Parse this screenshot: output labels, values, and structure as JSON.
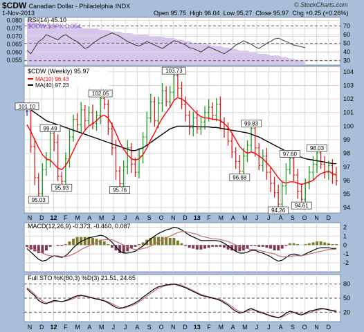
{
  "header": {
    "symbol": "$CDW",
    "name": "Canadian Dollar - Philadelphia",
    "exchange": "INDX",
    "date": "1-Nov-2013",
    "open_label": "Open",
    "open": "95.75",
    "high_label": "High",
    "high": "96.04",
    "low_label": "Low",
    "low": "95.27",
    "close_label": "Close",
    "close": "95.97",
    "chg_label": "Chg",
    "chg": "+0.25 (+0.26%)",
    "watermark": "© StockCharts.com"
  },
  "colors": {
    "background": "#a9bfd9",
    "panel": "#ffffff",
    "price_up": "#1f9a1f",
    "price_down": "#d61f1f",
    "price_flat": "#1f3fd6",
    "ma10": "#ff0000",
    "ma40": "#000000",
    "ratio_fill": "#d6c6ee",
    "macd_hist": "#7a7a2a",
    "macd_signal": "#c07070"
  },
  "chart_data": [
    {
      "type": "line",
      "panel": "rsi",
      "title": "RSI(14) 45.10",
      "overlay_label": "$CDW:$SPX 0.054",
      "ylim_left": [
        0.052,
        0.082
      ],
      "ticks_left": [
        "0.080",
        "0.075",
        "0.070",
        "0.065",
        "0.060",
        "0.055"
      ],
      "ticks_left_values": [
        0.08,
        0.075,
        0.07,
        0.065,
        0.06,
        0.055
      ],
      "ylim_right": [
        25,
        80
      ],
      "ticks_right": [
        "70",
        "60",
        "50",
        "40",
        "30"
      ],
      "ticks_right_values": [
        70,
        60,
        50,
        40,
        30
      ],
      "reference_lines": [
        70,
        50,
        30
      ],
      "ratio": [
        0.081,
        0.08,
        0.079,
        0.078,
        0.078,
        0.077,
        0.077,
        0.077,
        0.077,
        0.076,
        0.076,
        0.076,
        0.077,
        0.077,
        0.076,
        0.075,
        0.075,
        0.075,
        0.075,
        0.074,
        0.074,
        0.074,
        0.073,
        0.073,
        0.073,
        0.072,
        0.072,
        0.072,
        0.071,
        0.071,
        0.071,
        0.071,
        0.07,
        0.07,
        0.07,
        0.07,
        0.069,
        0.069,
        0.069,
        0.068,
        0.068,
        0.067,
        0.067,
        0.066,
        0.066,
        0.066,
        0.065,
        0.065,
        0.064,
        0.064,
        0.064,
        0.063,
        0.063,
        0.062,
        0.062,
        0.061,
        0.061,
        0.061,
        0.06,
        0.06,
        0.059,
        0.059,
        0.059,
        0.058,
        0.058,
        0.058,
        0.057,
        0.057,
        0.056,
        0.056,
        0.055,
        0.055,
        0.054
      ],
      "rsi": [
        42,
        38,
        45,
        52,
        55,
        60,
        58,
        56,
        54,
        58,
        60,
        57,
        54,
        52,
        48,
        44,
        46,
        50,
        53,
        56,
        58,
        60,
        62,
        60,
        58,
        55,
        52,
        50,
        48,
        47,
        49,
        52,
        50,
        48,
        46,
        44,
        47,
        50,
        53,
        52,
        50,
        48,
        45,
        44,
        42,
        40,
        43,
        46,
        44,
        42,
        40,
        38,
        41,
        44,
        48,
        50,
        53,
        51,
        49,
        46,
        44,
        47,
        50,
        52,
        55,
        56,
        54,
        52,
        50,
        48,
        47,
        46,
        45
      ]
    },
    {
      "type": "ohlc",
      "panel": "price",
      "title": "$CDW (Weekly) 95.97",
      "series_labels": [
        "MA(10) 96.43",
        "MA(40) 97.23"
      ],
      "ylim": [
        93.6,
        104.4
      ],
      "ticks": [
        "104",
        "103",
        "102",
        "101",
        "100",
        "99",
        "98",
        "97",
        "96",
        "95",
        "94"
      ],
      "tick_values": [
        104,
        103,
        102,
        101,
        100,
        99,
        98,
        97,
        96,
        95,
        94
      ],
      "x_labels": [
        "N",
        "D",
        "12",
        "F",
        "M",
        "A",
        "M",
        "J",
        "J",
        "A",
        "S",
        "O",
        "N",
        "D",
        "13",
        "F",
        "M",
        "A",
        "M",
        "J",
        "J",
        "A",
        "S",
        "O",
        "N",
        "D"
      ],
      "bold_x_labels": [
        "12",
        "13"
      ],
      "closes": [
        101.1,
        98.5,
        96.2,
        95.03,
        96.8,
        97.5,
        99.49,
        98.8,
        96.3,
        95.93,
        97.6,
        99.2,
        100.5,
        100.1,
        101.2,
        100.4,
        101.0,
        100.2,
        100.8,
        102.05,
        101.6,
        99.8,
        98.4,
        96.7,
        95.76,
        97.0,
        98.4,
        97.2,
        96.6,
        97.8,
        99.2,
        100.6,
        101.8,
        100.4,
        101.7,
        102.6,
        101.8,
        102.5,
        103.73,
        102.8,
        101.6,
        100.8,
        99.9,
        100.6,
        99.8,
        100.3,
        101.0,
        101.4,
        100.8,
        101.6,
        100.3,
        99.8,
        98.9,
        98.1,
        97.4,
        96.68,
        97.8,
        98.6,
        99.83,
        98.4,
        97.1,
        97.8,
        96.6,
        95.8,
        95.1,
        94.26,
        95.6,
        96.8,
        97.6,
        96.4,
        95.2,
        94.61,
        95.8,
        96.6,
        97.2,
        98.03,
        97.2,
        96.6,
        97.1,
        96.4,
        95.97
      ],
      "ma10": [
        100.1,
        99.6,
        99.0,
        98.4,
        97.9,
        97.6,
        97.5,
        97.2,
        96.9,
        96.8,
        97.1,
        97.6,
        98.2,
        98.8,
        99.3,
        99.7,
        100.0,
        100.2,
        100.4,
        100.7,
        100.8,
        100.6,
        100.1,
        99.5,
        98.8,
        98.3,
        97.9,
        97.6,
        97.5,
        97.6,
        97.9,
        98.4,
        99.0,
        99.5,
        100.1,
        100.6,
        101.0,
        101.4,
        101.9,
        102.1,
        102.0,
        101.8,
        101.5,
        101.2,
        100.9,
        100.7,
        100.6,
        100.6,
        100.5,
        100.5,
        100.4,
        100.2,
        99.9,
        99.5,
        99.0,
        98.5,
        98.2,
        98.0,
        98.1,
        98.0,
        97.8,
        97.6,
        97.3,
        97.0,
        96.6,
        96.2,
        95.9,
        95.8,
        95.9,
        95.9,
        95.8,
        95.7,
        95.8,
        95.9,
        96.0,
        96.3,
        96.5,
        96.6,
        96.7,
        96.5,
        96.43
      ],
      "ma40": [
        101.4,
        101.2,
        101.0,
        100.8,
        100.6,
        100.4,
        100.3,
        100.2,
        100.1,
        100.0,
        99.9,
        99.8,
        99.7,
        99.6,
        99.5,
        99.4,
        99.3,
        99.2,
        99.1,
        99.0,
        98.9,
        98.8,
        98.7,
        98.6,
        98.5,
        98.4,
        98.3,
        98.2,
        98.2,
        98.3,
        98.4,
        98.6,
        98.8,
        99.0,
        99.2,
        99.4,
        99.6,
        99.8,
        99.9,
        100.0,
        100.0,
        100.0,
        100.0,
        100.0,
        99.95,
        99.95,
        99.95,
        99.95,
        99.9,
        99.9,
        99.85,
        99.8,
        99.75,
        99.7,
        99.65,
        99.6,
        99.55,
        99.5,
        99.4,
        99.3,
        99.2,
        99.05,
        98.9,
        98.75,
        98.6,
        98.45,
        98.3,
        98.15,
        98.0,
        97.9,
        97.8,
        97.7,
        97.6,
        97.55,
        97.5,
        97.45,
        97.4,
        97.35,
        97.3,
        97.25,
        97.23
      ],
      "annotations": [
        {
          "label": "101.10",
          "index": 0,
          "value": 101.1
        },
        {
          "label": "99.49",
          "index": 6,
          "value": 99.49
        },
        {
          "label": "95.03",
          "index": 3,
          "value": 95.03
        },
        {
          "label": "95.93",
          "index": 9,
          "value": 95.93
        },
        {
          "label": "102.05",
          "index": 19,
          "value": 102.05
        },
        {
          "label": "95.76",
          "index": 24,
          "value": 95.76
        },
        {
          "label": "103.73",
          "index": 38,
          "value": 103.73
        },
        {
          "label": "96.68",
          "index": 55,
          "value": 96.68
        },
        {
          "label": "99.83",
          "index": 58,
          "value": 99.83
        },
        {
          "label": "97.60",
          "index": 68,
          "value": 97.6
        },
        {
          "label": "94.26",
          "index": 65,
          "value": 94.26
        },
        {
          "label": "94.61",
          "index": 71,
          "value": 94.61
        },
        {
          "label": "98.03",
          "index": 75,
          "value": 98.03
        }
      ]
    },
    {
      "type": "line",
      "panel": "macd",
      "title": "MACD(12,26,9) -0.373, -0.460, 0.087",
      "ylim": [
        -3,
        2.5
      ],
      "ticks": [
        "2",
        "1",
        "0",
        "-1",
        "-2"
      ],
      "tick_values": [
        2,
        1,
        0,
        -1,
        -2
      ],
      "macd": [
        -0.4,
        -0.8,
        -1.2,
        -1.6,
        -1.8,
        -1.7,
        -1.4,
        -1.2,
        -1.3,
        -1.4,
        -1.2,
        -0.8,
        -0.3,
        0.1,
        0.4,
        0.6,
        0.8,
        0.9,
        1.0,
        1.1,
        1.0,
        0.7,
        0.3,
        -0.2,
        -0.7,
        -0.9,
        -0.9,
        -0.8,
        -0.7,
        -0.4,
        -0.1,
        0.3,
        0.7,
        1.0,
        1.3,
        1.5,
        1.7,
        1.8,
        2.0,
        1.9,
        1.7,
        1.4,
        1.1,
        0.9,
        0.7,
        0.5,
        0.5,
        0.5,
        0.5,
        0.5,
        0.4,
        0.2,
        -0.1,
        -0.4,
        -0.7,
        -0.9,
        -0.9,
        -0.8,
        -0.6,
        -0.6,
        -0.8,
        -0.9,
        -1.1,
        -1.3,
        -1.6,
        -1.8,
        -1.7,
        -1.4,
        -1.1,
        -1.0,
        -1.1,
        -1.2,
        -1.0,
        -0.8,
        -0.6,
        -0.4,
        -0.3,
        -0.3,
        -0.3,
        -0.4,
        -0.37
      ],
      "signal": [
        -0.2,
        -0.3,
        -0.5,
        -0.7,
        -0.9,
        -1.1,
        -1.2,
        -1.2,
        -1.2,
        -1.3,
        -1.3,
        -1.2,
        -1.0,
        -0.8,
        -0.5,
        -0.3,
        -0.1,
        0.1,
        0.3,
        0.5,
        0.6,
        0.6,
        0.6,
        0.4,
        0.2,
        0.0,
        -0.2,
        -0.4,
        -0.5,
        -0.5,
        -0.4,
        -0.3,
        -0.1,
        0.1,
        0.4,
        0.6,
        0.8,
        1.0,
        1.2,
        1.4,
        1.5,
        1.5,
        1.4,
        1.3,
        1.2,
        1.0,
        0.9,
        0.8,
        0.7,
        0.7,
        0.6,
        0.5,
        0.4,
        0.2,
        0.0,
        -0.2,
        -0.3,
        -0.4,
        -0.5,
        -0.5,
        -0.6,
        -0.7,
        -0.8,
        -0.9,
        -1.0,
        -1.2,
        -1.3,
        -1.3,
        -1.3,
        -1.2,
        -1.2,
        -1.2,
        -1.1,
        -1.0,
        -0.9,
        -0.8,
        -0.7,
        -0.6,
        -0.5,
        -0.5,
        -0.46
      ]
    },
    {
      "type": "line",
      "panel": "sto",
      "title": "Full STO %K(80,3) %D(3) 21.51, 24.65",
      "ylim": [
        0,
        100
      ],
      "ticks": [
        "80",
        "50",
        "20"
      ],
      "tick_values": [
        80,
        50,
        20
      ],
      "reference_lines": [
        80,
        50,
        20
      ],
      "k": [
        70,
        62,
        55,
        45,
        40,
        38,
        42,
        45,
        44,
        42,
        45,
        48,
        52,
        55,
        56,
        54,
        52,
        50,
        48,
        46,
        44,
        40,
        35,
        30,
        28,
        30,
        33,
        36,
        40,
        45,
        52,
        58,
        64,
        70,
        74,
        76,
        78,
        79,
        80,
        78,
        75,
        72,
        68,
        64,
        60,
        56,
        54,
        52,
        50,
        48,
        45,
        40,
        35,
        28,
        22,
        18,
        20,
        25,
        28,
        24,
        20,
        18,
        15,
        12,
        10,
        8,
        12,
        18,
        22,
        20,
        16,
        14,
        18,
        22,
        24,
        26,
        28,
        27,
        25,
        23,
        21.5
      ],
      "d": [
        72,
        66,
        58,
        50,
        44,
        40,
        40,
        43,
        44,
        43,
        44,
        46,
        49,
        53,
        55,
        55,
        53,
        51,
        49,
        47,
        45,
        42,
        38,
        34,
        30,
        29,
        31,
        34,
        37,
        42,
        48,
        54,
        60,
        66,
        71,
        74,
        77,
        78,
        79,
        79,
        77,
        74,
        70,
        66,
        62,
        58,
        55,
        53,
        51,
        49,
        47,
        43,
        38,
        32,
        26,
        21,
        20,
        22,
        25,
        25,
        22,
        19,
        16,
        13,
        11,
        9,
        10,
        14,
        18,
        20,
        18,
        16,
        16,
        19,
        22,
        24,
        26,
        27,
        26,
        24,
        24.65
      ]
    }
  ]
}
